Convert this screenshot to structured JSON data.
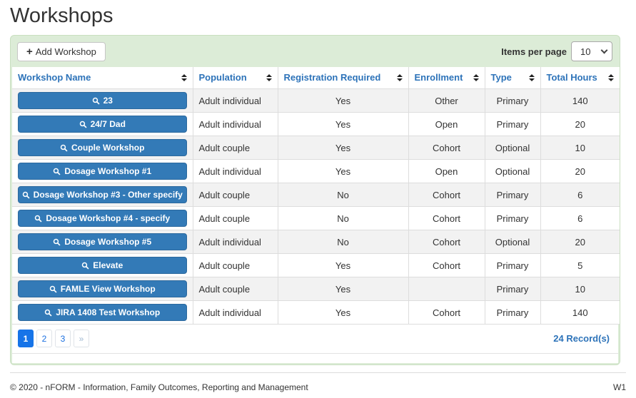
{
  "page": {
    "title": "Workshops",
    "footer": {
      "copyright": "© 2020 - nFORM - Information, Family Outcomes, Reporting and Management",
      "version": "W1"
    }
  },
  "toolbar": {
    "add_button_label": "Add Workshop",
    "items_per_page_label": "Items per page",
    "items_per_page_value": "10"
  },
  "icons": {
    "add_button": "plus-icon",
    "workshop_button": "search-icon",
    "column_header": "sort-icon",
    "items_per_page": "chevron-down-icon"
  },
  "colors": {
    "panel_background": "#dcecd7",
    "panel_border": "#c9dfc0",
    "header_text": "#2d73b9",
    "workshop_button": "#337ab7",
    "stripe": "#f2f2f2",
    "pagination_active": "#1674e8"
  },
  "table": {
    "columns": [
      "Workshop Name",
      "Population",
      "Registration Required",
      "Enrollment",
      "Type",
      "Total Hours"
    ],
    "rows": [
      {
        "name": "23",
        "population": "Adult individual",
        "registration_required": "Yes",
        "enrollment": "Other",
        "type": "Primary",
        "total_hours": "140"
      },
      {
        "name": "24/7 Dad",
        "population": "Adult individual",
        "registration_required": "Yes",
        "enrollment": "Open",
        "type": "Primary",
        "total_hours": "20"
      },
      {
        "name": "Couple Workshop",
        "population": "Adult couple",
        "registration_required": "Yes",
        "enrollment": "Cohort",
        "type": "Optional",
        "total_hours": "10"
      },
      {
        "name": "Dosage Workshop #1",
        "population": "Adult individual",
        "registration_required": "Yes",
        "enrollment": "Open",
        "type": "Optional",
        "total_hours": "20"
      },
      {
        "name": "Dosage Workshop #3 - Other specify",
        "population": "Adult couple",
        "registration_required": "No",
        "enrollment": "Cohort",
        "type": "Primary",
        "total_hours": "6"
      },
      {
        "name": "Dosage Workshop #4 - specify",
        "population": "Adult couple",
        "registration_required": "No",
        "enrollment": "Cohort",
        "type": "Primary",
        "total_hours": "6"
      },
      {
        "name": "Dosage Workshop #5",
        "population": "Adult individual",
        "registration_required": "No",
        "enrollment": "Cohort",
        "type": "Optional",
        "total_hours": "20"
      },
      {
        "name": "Elevate",
        "population": "Adult couple",
        "registration_required": "Yes",
        "enrollment": "Cohort",
        "type": "Primary",
        "total_hours": "5"
      },
      {
        "name": "FAMLE View Workshop",
        "population": "Adult couple",
        "registration_required": "Yes",
        "enrollment": "",
        "type": "Primary",
        "total_hours": "10"
      },
      {
        "name": "JIRA 1408 Test Workshop",
        "population": "Adult individual",
        "registration_required": "Yes",
        "enrollment": "Cohort",
        "type": "Primary",
        "total_hours": "140"
      }
    ]
  },
  "pagination": {
    "pages": [
      "1",
      "2",
      "3"
    ],
    "active_page": "1",
    "next_label": "»",
    "records_label": "24 Record(s)"
  }
}
